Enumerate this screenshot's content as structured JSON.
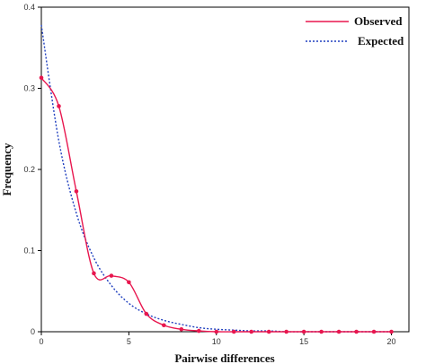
{
  "chart_data": {
    "type": "line",
    "xlabel": "Pairwise differences",
    "ylabel": "Frequency",
    "xlim": [
      0,
      21
    ],
    "ylim": [
      0,
      0.4
    ],
    "x_ticks": [
      0,
      5,
      10,
      15,
      20
    ],
    "y_ticks": [
      0,
      0.1,
      0.2,
      0.3,
      0.4
    ],
    "x_tick_labels": [
      "0",
      "5",
      "10",
      "15",
      "20"
    ],
    "y_tick_labels": [
      "0",
      "0.1",
      "0.2",
      "0.3",
      "0.4"
    ],
    "legend_position": "top-right",
    "grid": false,
    "series": [
      {
        "name": "Observed",
        "color": "#e8174f",
        "style": "solid",
        "x": [
          0,
          1,
          2,
          3,
          4,
          5,
          6,
          7,
          8,
          9,
          10,
          11,
          12,
          13,
          14,
          15,
          16,
          17,
          18,
          19,
          20
        ],
        "y": [
          0.313,
          0.278,
          0.173,
          0.072,
          0.069,
          0.061,
          0.022,
          0.008,
          0.003,
          0.001,
          0.0,
          0.0,
          0.0,
          0.0,
          0.0,
          0.0,
          0.0,
          0.0,
          0.0,
          0.0,
          0.0
        ]
      },
      {
        "name": "Expected",
        "color": "#1f3fbf",
        "style": "dotted",
        "x": [
          0,
          1,
          2,
          3,
          4,
          5,
          6,
          7,
          8,
          9,
          10,
          11,
          12,
          13,
          14,
          15,
          16,
          17,
          18,
          19,
          20
        ],
        "y": [
          0.378,
          0.235,
          0.146,
          0.091,
          0.057,
          0.035,
          0.022,
          0.014,
          0.009,
          0.005,
          0.003,
          0.002,
          0.001,
          0.001,
          0.0,
          0.0,
          0.0,
          0.0,
          0.0,
          0.0,
          0.0
        ]
      }
    ]
  }
}
